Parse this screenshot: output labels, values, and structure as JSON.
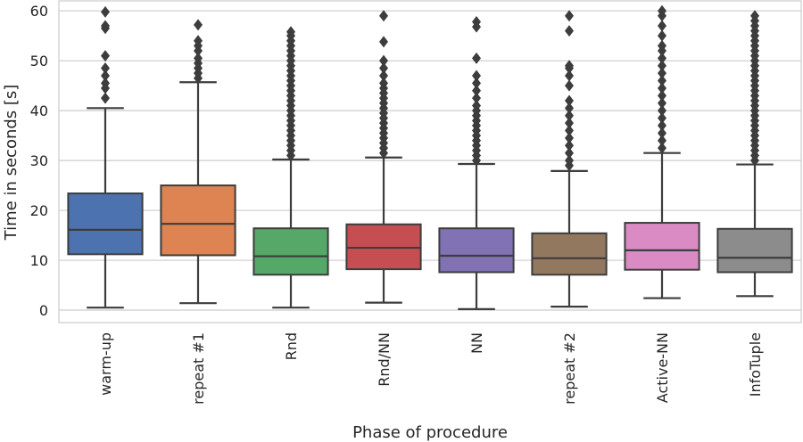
{
  "chart_data": {
    "type": "box",
    "title": "",
    "xlabel": "Phase of procedure",
    "ylabel": "Time in seconds [s]",
    "ylim": [
      -2.5,
      62
    ],
    "yticks": [
      0,
      10,
      20,
      30,
      40,
      50,
      60
    ],
    "grid": true,
    "categories": [
      "warm-up",
      "repeat #1",
      "Rnd",
      "Rnd/NN",
      "NN",
      "repeat #2",
      "Active-NN",
      "InfoTuple"
    ],
    "colors": [
      "#4c72b0",
      "#dd8452",
      "#55a868",
      "#c44e52",
      "#8172b3",
      "#937860",
      "#da8bc3",
      "#8c8c8c"
    ],
    "series": [
      {
        "name": "warm-up",
        "whisker_low": 0.5,
        "q1": 11.2,
        "median": 16.1,
        "q3": 23.4,
        "whisker_high": 40.5,
        "outliers": [
          42.5,
          44.5,
          45.5,
          47,
          48.5,
          51,
          56.5,
          57,
          59.8
        ]
      },
      {
        "name": "repeat #1",
        "whisker_low": 1.4,
        "q1": 11.0,
        "median": 17.3,
        "q3": 25.0,
        "whisker_high": 45.7,
        "outliers": [
          46.5,
          47.5,
          48.5,
          49.5,
          50.5,
          52,
          53,
          54,
          57.2
        ]
      },
      {
        "name": "Rnd",
        "whisker_low": 0.5,
        "q1": 7.1,
        "median": 10.8,
        "q3": 16.4,
        "whisker_high": 30.2,
        "outliers": [
          31,
          32,
          33,
          34,
          35,
          36,
          37,
          38,
          39,
          40,
          41,
          42,
          43,
          44,
          45,
          46,
          47,
          48,
          49,
          50,
          51,
          52,
          53,
          54,
          55,
          55.8
        ]
      },
      {
        "name": "Rnd/NN",
        "whisker_low": 1.5,
        "q1": 8.2,
        "median": 12.5,
        "q3": 17.2,
        "whisker_high": 30.6,
        "outliers": [
          31.5,
          32.5,
          33.5,
          34.5,
          35.5,
          36.5,
          37.5,
          38.5,
          39.5,
          40.5,
          41.5,
          42.5,
          43.5,
          44.5,
          45.5,
          47,
          48.5,
          50,
          53.8,
          59
        ]
      },
      {
        "name": "NN",
        "whisker_low": 0.2,
        "q1": 7.6,
        "median": 10.9,
        "q3": 16.4,
        "whisker_high": 29.3,
        "outliers": [
          30,
          31,
          32,
          33,
          34,
          35,
          36,
          37,
          38,
          39,
          40,
          41,
          42.5,
          44,
          45.5,
          47,
          50.5,
          56.8,
          57.8
        ]
      },
      {
        "name": "repeat #2",
        "whisker_low": 0.7,
        "q1": 7.1,
        "median": 10.4,
        "q3": 15.4,
        "whisker_high": 27.9,
        "outliers": [
          29,
          30,
          31.5,
          33,
          34.5,
          36,
          37.5,
          39,
          40.5,
          42,
          45,
          47,
          48.5,
          49,
          56,
          59
        ]
      },
      {
        "name": "Active-NN",
        "whisker_low": 2.4,
        "q1": 8.1,
        "median": 12.0,
        "q3": 17.5,
        "whisker_high": 31.5,
        "outliers": [
          32.5,
          34,
          35.5,
          37,
          38.5,
          40,
          41.5,
          43,
          44.5,
          46,
          47.5,
          49,
          50.5,
          52,
          53,
          55,
          57,
          59,
          60
        ]
      },
      {
        "name": "InfoTuple",
        "whisker_low": 2.8,
        "q1": 7.6,
        "median": 10.5,
        "q3": 16.3,
        "whisker_high": 29.2,
        "outliers": [
          30,
          31,
          32,
          33,
          34,
          35,
          36,
          37,
          38,
          39,
          40,
          41,
          42,
          43,
          44,
          45,
          46,
          47,
          48,
          49,
          50,
          51,
          52,
          53,
          54,
          55,
          56,
          57,
          58,
          59
        ]
      }
    ]
  }
}
